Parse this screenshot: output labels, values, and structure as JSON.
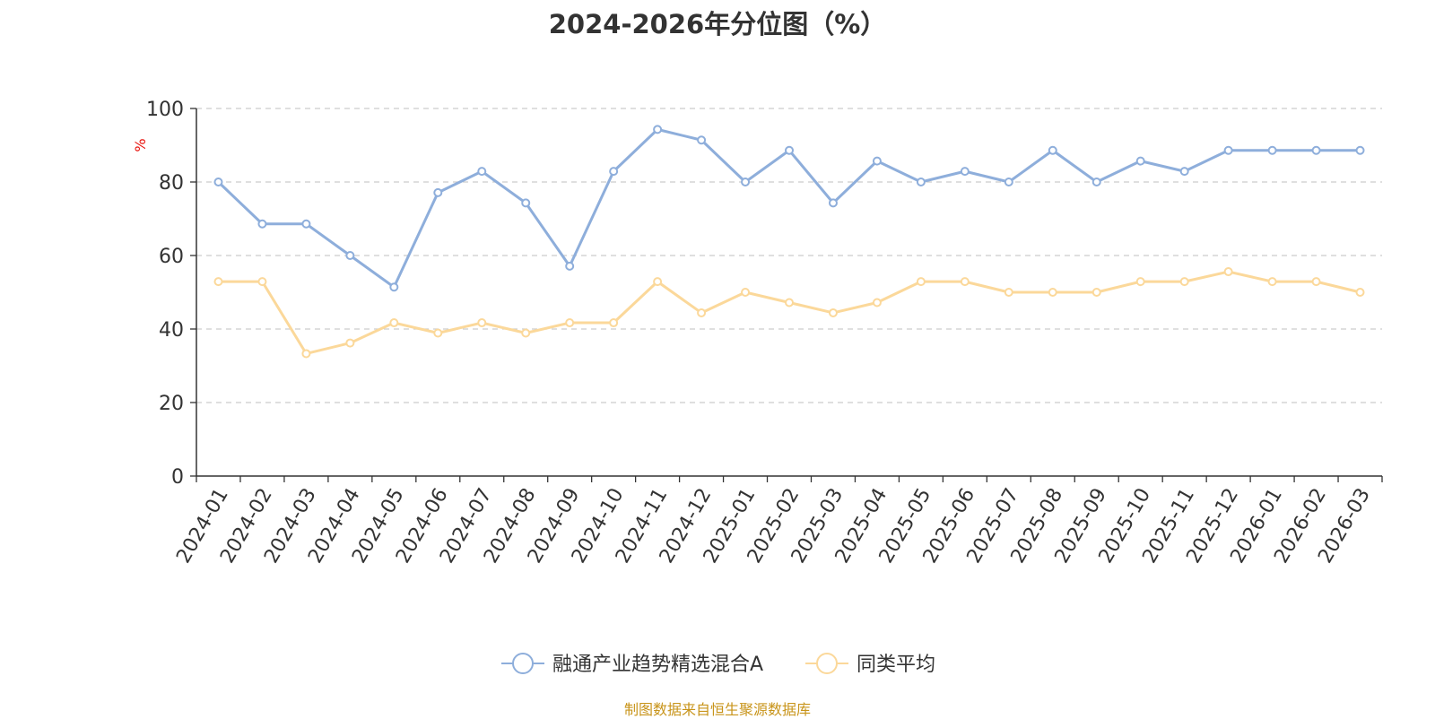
{
  "chart_data": {
    "type": "line",
    "title": "2024-2026年分位图（%）",
    "ylabel": "%",
    "xlabel": "",
    "ylim": [
      0,
      100
    ],
    "yticks": [
      0,
      20,
      40,
      60,
      80,
      100
    ],
    "grid": true,
    "legend_position": "bottom",
    "categories": [
      "2024-01",
      "2024-02",
      "2024-03",
      "2024-04",
      "2024-05",
      "2024-06",
      "2024-07",
      "2024-08",
      "2024-09",
      "2024-10",
      "2024-11",
      "2024-12",
      "2025-01",
      "2025-02",
      "2025-03",
      "2025-04",
      "2025-05",
      "2025-06",
      "2025-07",
      "2025-08",
      "2025-09",
      "2025-10",
      "2025-11",
      "2025-12",
      "2026-01",
      "2026-02",
      "2026-03"
    ],
    "series": [
      {
        "name": "融通产业趋势精选混合A",
        "color": "#8eaedb",
        "values": [
          80,
          68.6,
          68.6,
          60,
          51.4,
          77.1,
          82.9,
          74.3,
          57.1,
          82.9,
          94.3,
          91.4,
          80,
          88.6,
          74.3,
          85.7,
          80,
          82.9,
          80,
          88.6,
          80,
          85.7,
          82.9,
          88.6,
          88.6,
          88.6,
          88.6
        ]
      },
      {
        "name": "同类平均",
        "color": "#fbd89a",
        "values": [
          52.9,
          52.9,
          33.3,
          36.2,
          41.7,
          38.9,
          41.7,
          38.9,
          41.7,
          41.7,
          52.9,
          44.4,
          50,
          47.2,
          44.4,
          47.2,
          52.9,
          52.9,
          50,
          50,
          50,
          52.9,
          52.9,
          55.6,
          52.9,
          52.9,
          50
        ]
      }
    ]
  },
  "source_note": "制图数据来自恒生聚源数据库",
  "colors": {
    "axis": "#333333",
    "grid": "#cccccc",
    "unit_label": "#e8120c",
    "source_note": "#c8941a"
  }
}
